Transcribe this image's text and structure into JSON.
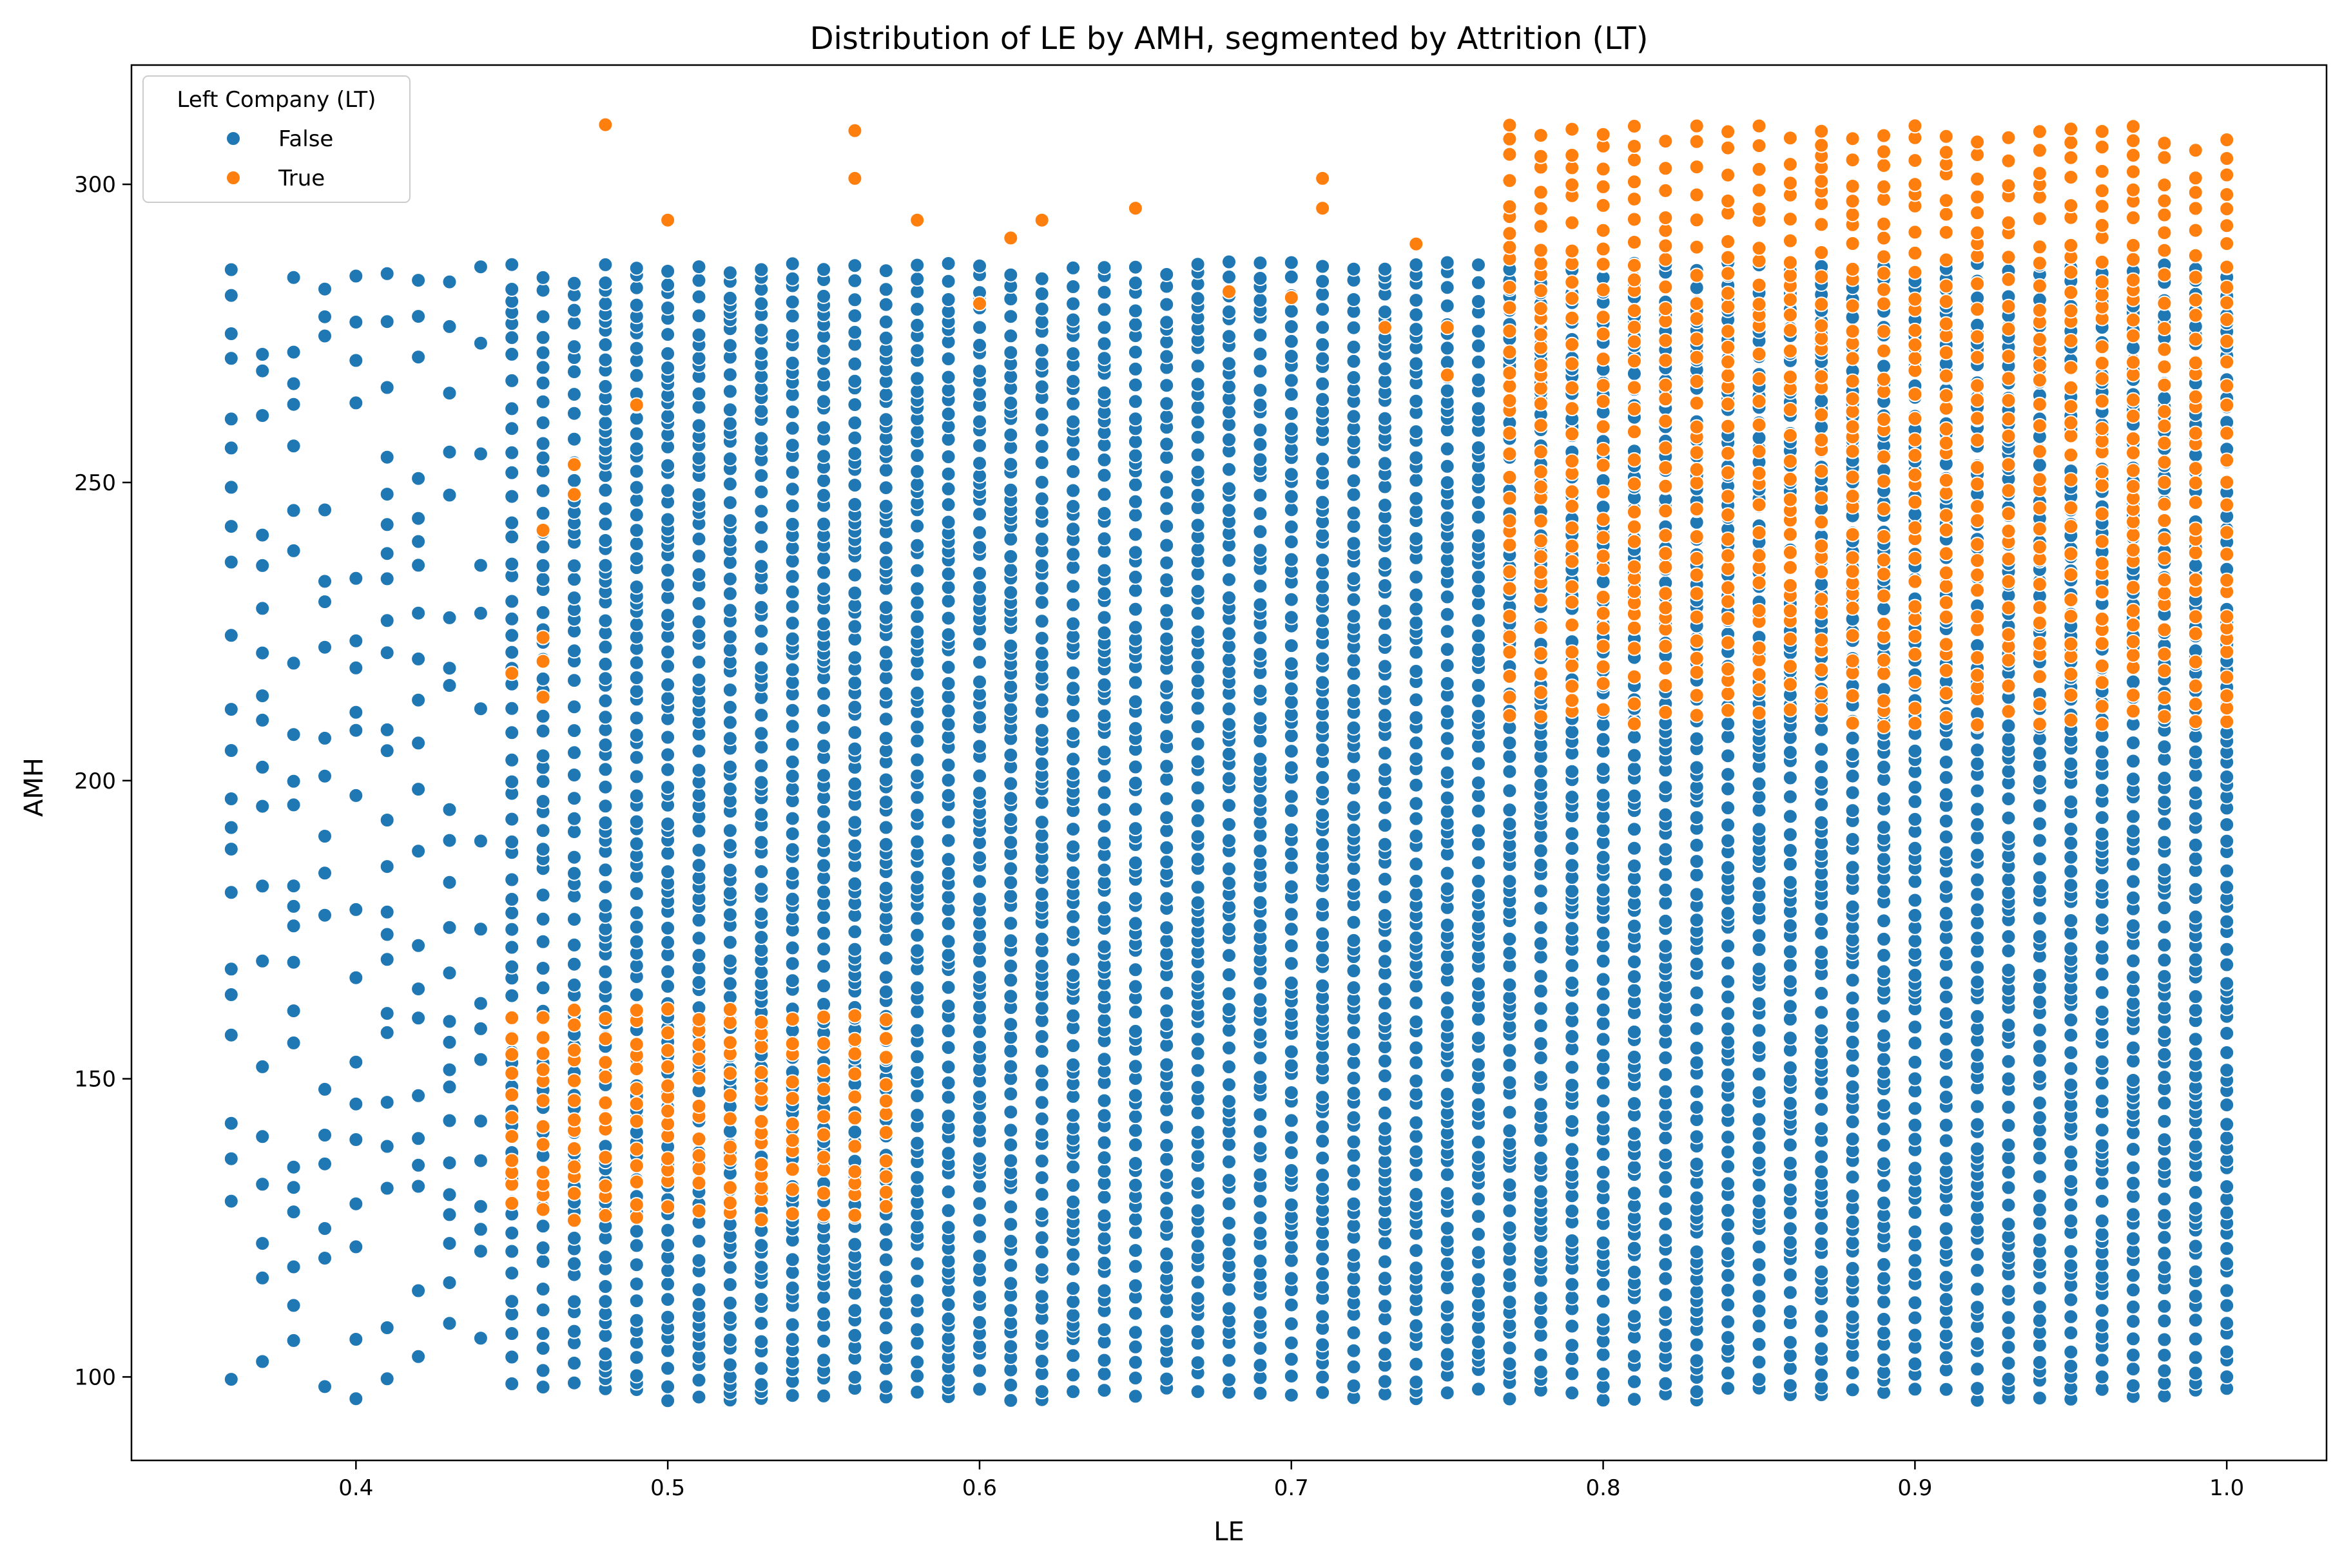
{
  "chart_data": {
    "type": "scatter",
    "title": "Distribution of LE by AMH, segmented by Attrition (LT)",
    "xlabel": "LE",
    "ylabel": "AMH",
    "xlim": [
      0.328,
      1.032
    ],
    "ylim": [
      86,
      320
    ],
    "xticks": [
      0.4,
      0.5,
      0.6,
      0.7,
      0.8,
      0.9,
      1.0
    ],
    "xtick_labels": [
      "0.4",
      "0.5",
      "0.6",
      "0.7",
      "0.8",
      "0.9",
      "1.0"
    ],
    "yticks": [
      100,
      150,
      200,
      250,
      300
    ],
    "ytick_labels": [
      "100",
      "150",
      "200",
      "250",
      "300"
    ],
    "grid": false,
    "legend": {
      "title": "Left Company (LT)",
      "position": "top-left",
      "entries": [
        {
          "label": "False",
          "color": "#1f77b4"
        },
        {
          "label": "True",
          "color": "#ff7f0e"
        }
      ]
    },
    "x_levels": [
      0.36,
      0.37,
      0.38,
      0.39,
      0.4,
      0.41,
      0.42,
      0.43,
      0.44,
      0.45,
      0.46,
      0.47,
      0.48,
      0.49,
      0.5,
      0.51,
      0.52,
      0.53,
      0.54,
      0.55,
      0.56,
      0.57,
      0.58,
      0.59,
      0.6,
      0.61,
      0.62,
      0.63,
      0.64,
      0.65,
      0.66,
      0.67,
      0.68,
      0.69,
      0.7,
      0.71,
      0.72,
      0.73,
      0.74,
      0.75,
      0.76,
      0.77,
      0.78,
      0.79,
      0.8,
      0.81,
      0.82,
      0.83,
      0.84,
      0.85,
      0.86,
      0.87,
      0.88,
      0.89,
      0.9,
      0.91,
      0.92,
      0.93,
      0.94,
      0.95,
      0.96,
      0.97,
      0.98,
      0.99,
      1.0
    ],
    "series": [
      {
        "name": "False",
        "color": "#1f77b4",
        "clusters": [
          {
            "x_range": [
              0.36,
              0.44
            ],
            "y_range": [
              96,
              287
            ],
            "density": "sparse"
          },
          {
            "x_range": [
              0.45,
              0.47
            ],
            "y_range": [
              96,
              287
            ],
            "density": "medium"
          },
          {
            "x_range": [
              0.48,
              0.76
            ],
            "y_range": [
              96,
              287
            ],
            "density": "dense"
          },
          {
            "x_range": [
              0.77,
              1.0
            ],
            "y_range": [
              96,
              287
            ],
            "density": "dense"
          }
        ]
      },
      {
        "name": "True",
        "color": "#ff7f0e",
        "clusters": [
          {
            "x_range": [
              0.45,
              0.57
            ],
            "y_range": [
              126,
              162
            ],
            "density": "medium"
          },
          {
            "x_range": [
              0.77,
              1.0
            ],
            "y_range": [
              209,
              310
            ],
            "density": "medium"
          }
        ],
        "points": [
          {
            "x": 0.45,
            "y": 218
          },
          {
            "x": 0.46,
            "y": 242
          },
          {
            "x": 0.46,
            "y": 224
          },
          {
            "x": 0.46,
            "y": 220
          },
          {
            "x": 0.46,
            "y": 214
          },
          {
            "x": 0.47,
            "y": 253
          },
          {
            "x": 0.47,
            "y": 248
          },
          {
            "x": 0.48,
            "y": 310
          },
          {
            "x": 0.49,
            "y": 263
          },
          {
            "x": 0.5,
            "y": 294
          },
          {
            "x": 0.56,
            "y": 309
          },
          {
            "x": 0.56,
            "y": 301
          },
          {
            "x": 0.58,
            "y": 294
          },
          {
            "x": 0.6,
            "y": 280
          },
          {
            "x": 0.61,
            "y": 291
          },
          {
            "x": 0.62,
            "y": 294
          },
          {
            "x": 0.65,
            "y": 296
          },
          {
            "x": 0.68,
            "y": 282
          },
          {
            "x": 0.7,
            "y": 281
          },
          {
            "x": 0.71,
            "y": 301
          },
          {
            "x": 0.71,
            "y": 296
          },
          {
            "x": 0.73,
            "y": 276
          },
          {
            "x": 0.74,
            "y": 290
          },
          {
            "x": 0.75,
            "y": 268
          },
          {
            "x": 0.75,
            "y": 276
          }
        ]
      }
    ]
  }
}
